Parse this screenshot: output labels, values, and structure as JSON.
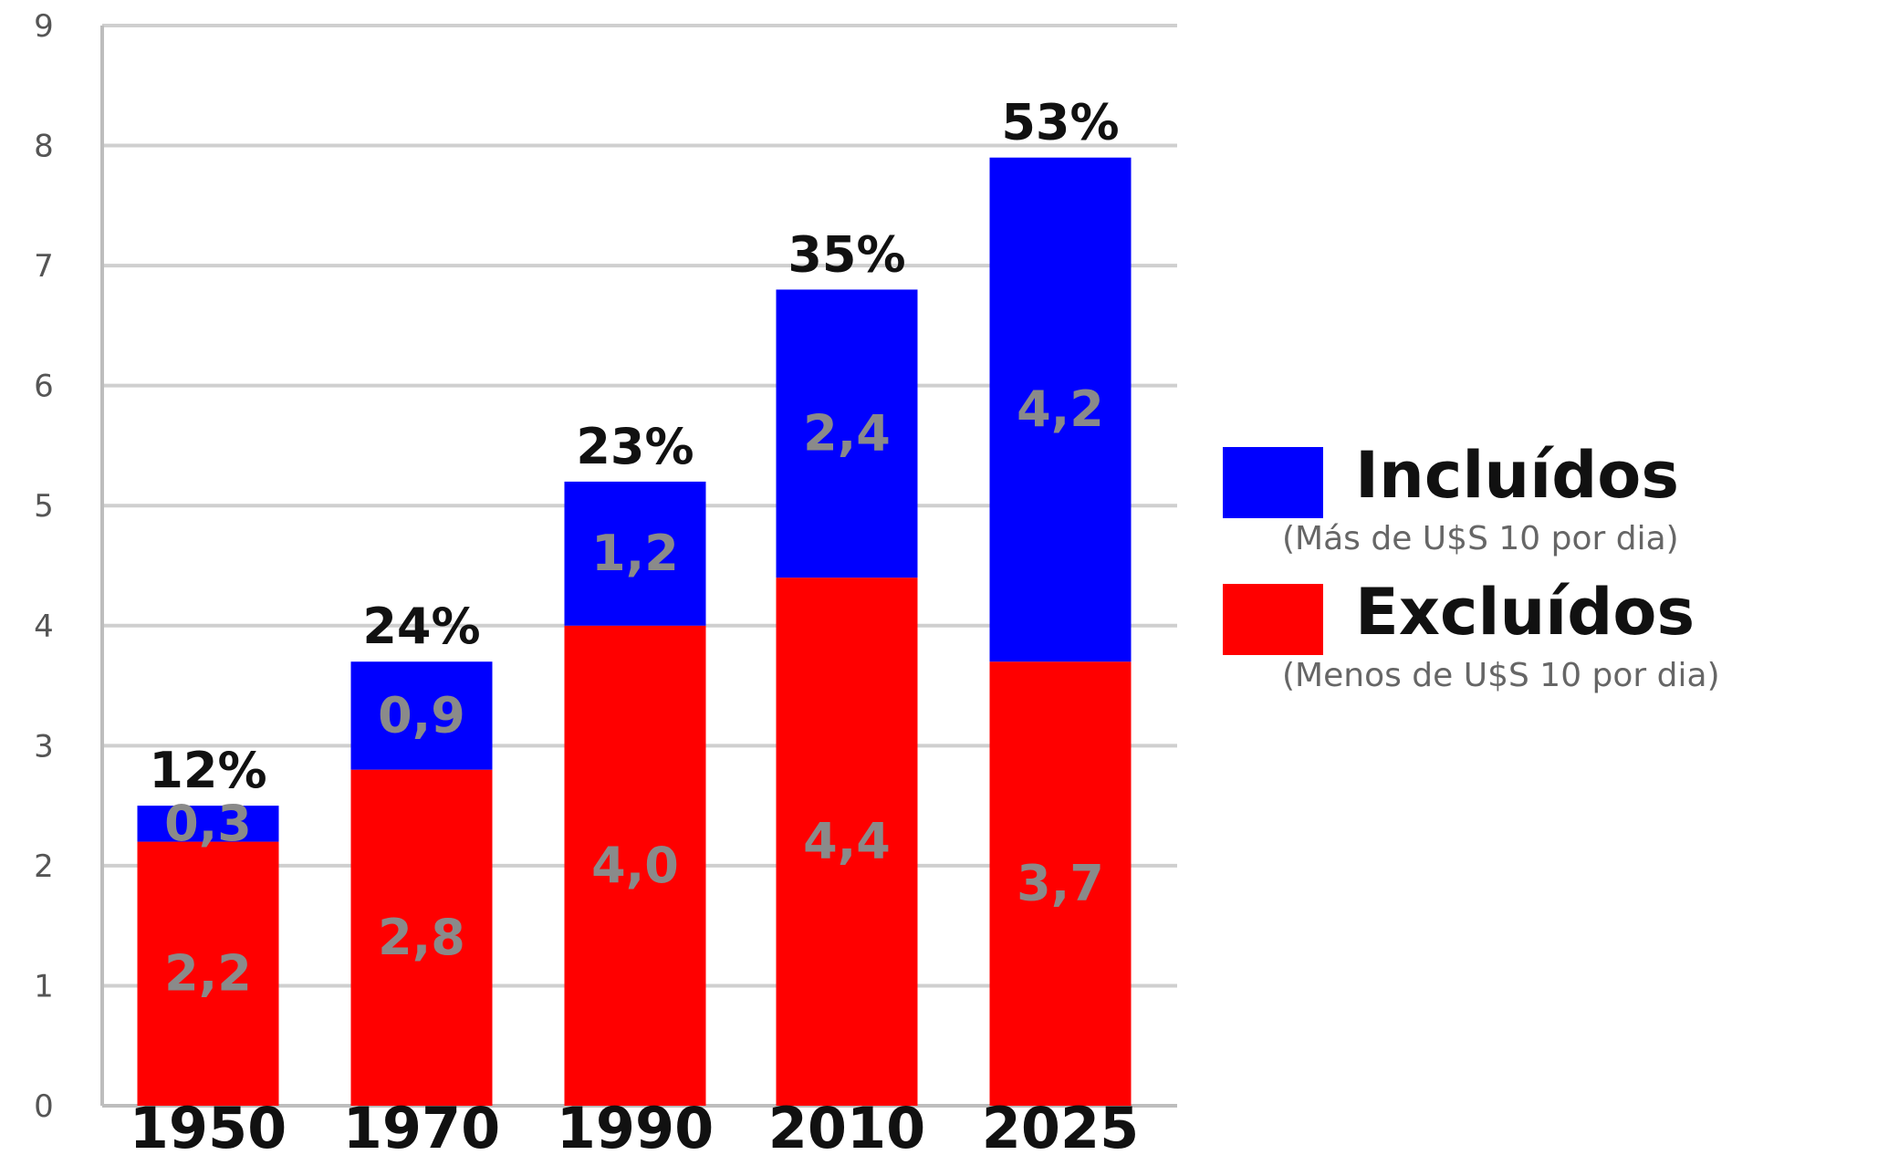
{
  "chart_data": {
    "type": "bar",
    "stacked": true,
    "categories": [
      "1950",
      "1970",
      "1990",
      "2010",
      "2025"
    ],
    "series": [
      {
        "name": "Excluídos",
        "note": "(Menos de U$S 10 por dia)",
        "color": "#ff0000",
        "values": [
          2.2,
          2.8,
          4.0,
          4.4,
          3.7
        ],
        "labels": [
          "2,2",
          "2,8",
          "4,0",
          "4,4",
          "3,7"
        ]
      },
      {
        "name": "Incluídos",
        "note": "(Más de U$S 10 por dia)",
        "color": "#0000ff",
        "values": [
          0.3,
          0.9,
          1.2,
          2.4,
          4.2
        ],
        "labels": [
          "0,3",
          "0,9",
          "1,2",
          "2,4",
          "4,2"
        ]
      }
    ],
    "top_labels": [
      "12%",
      "24%",
      "23%",
      "35%",
      "53%"
    ],
    "ylim": [
      0,
      9
    ],
    "yticks": [
      "0",
      "1",
      "2",
      "3",
      "4",
      "5",
      "6",
      "7",
      "8",
      "9"
    ],
    "grid": true,
    "legend_position": "right",
    "colors": {
      "grid": "#cfcfcf",
      "axis": "#bdbdbd",
      "inner_label": "#8a8a8a",
      "tick_label": "#555555",
      "text": "#111111"
    }
  }
}
